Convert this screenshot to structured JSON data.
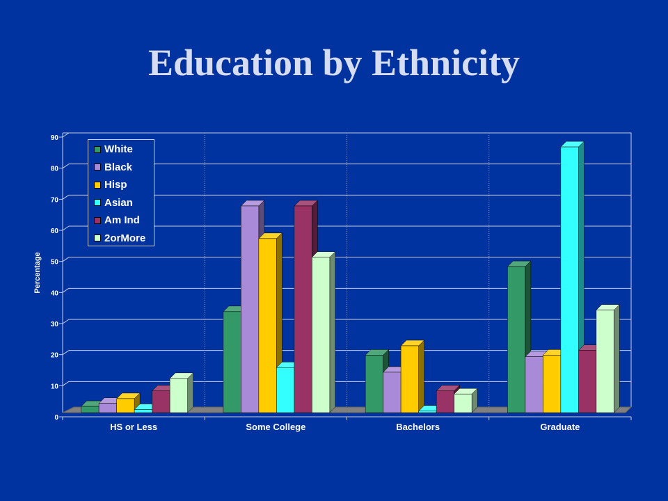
{
  "slide": {
    "title": "Education by Ethnicity"
  },
  "chart_data": {
    "type": "bar",
    "title": "",
    "xlabel": "",
    "ylabel": "Percentage",
    "ylim": [
      0,
      90
    ],
    "yticks": [
      0,
      10,
      20,
      30,
      40,
      50,
      60,
      70,
      80,
      90
    ],
    "grid": true,
    "legend_position": "top-left",
    "categories": [
      "HS or Less",
      "Some College",
      "Bachelors",
      "Graduate"
    ],
    "series": [
      {
        "name": "White",
        "color": "#339966",
        "values": [
          2,
          32.5,
          18.5,
          47
        ]
      },
      {
        "name": "Black",
        "color": "#a98ad8",
        "values": [
          3,
          66.5,
          13,
          18
        ]
      },
      {
        "name": "Hisp",
        "color": "#ffcc00",
        "values": [
          4.5,
          56,
          21.5,
          18.5
        ]
      },
      {
        "name": "Asian",
        "color": "#33ffff",
        "values": [
          1,
          14.5,
          0.5,
          85.5
        ]
      },
      {
        "name": "Am Ind",
        "color": "#993366",
        "values": [
          7,
          66.5,
          7,
          20
        ]
      },
      {
        "name": "2orMore",
        "color": "#ccffcc",
        "values": [
          11,
          50,
          6,
          33
        ]
      }
    ]
  }
}
